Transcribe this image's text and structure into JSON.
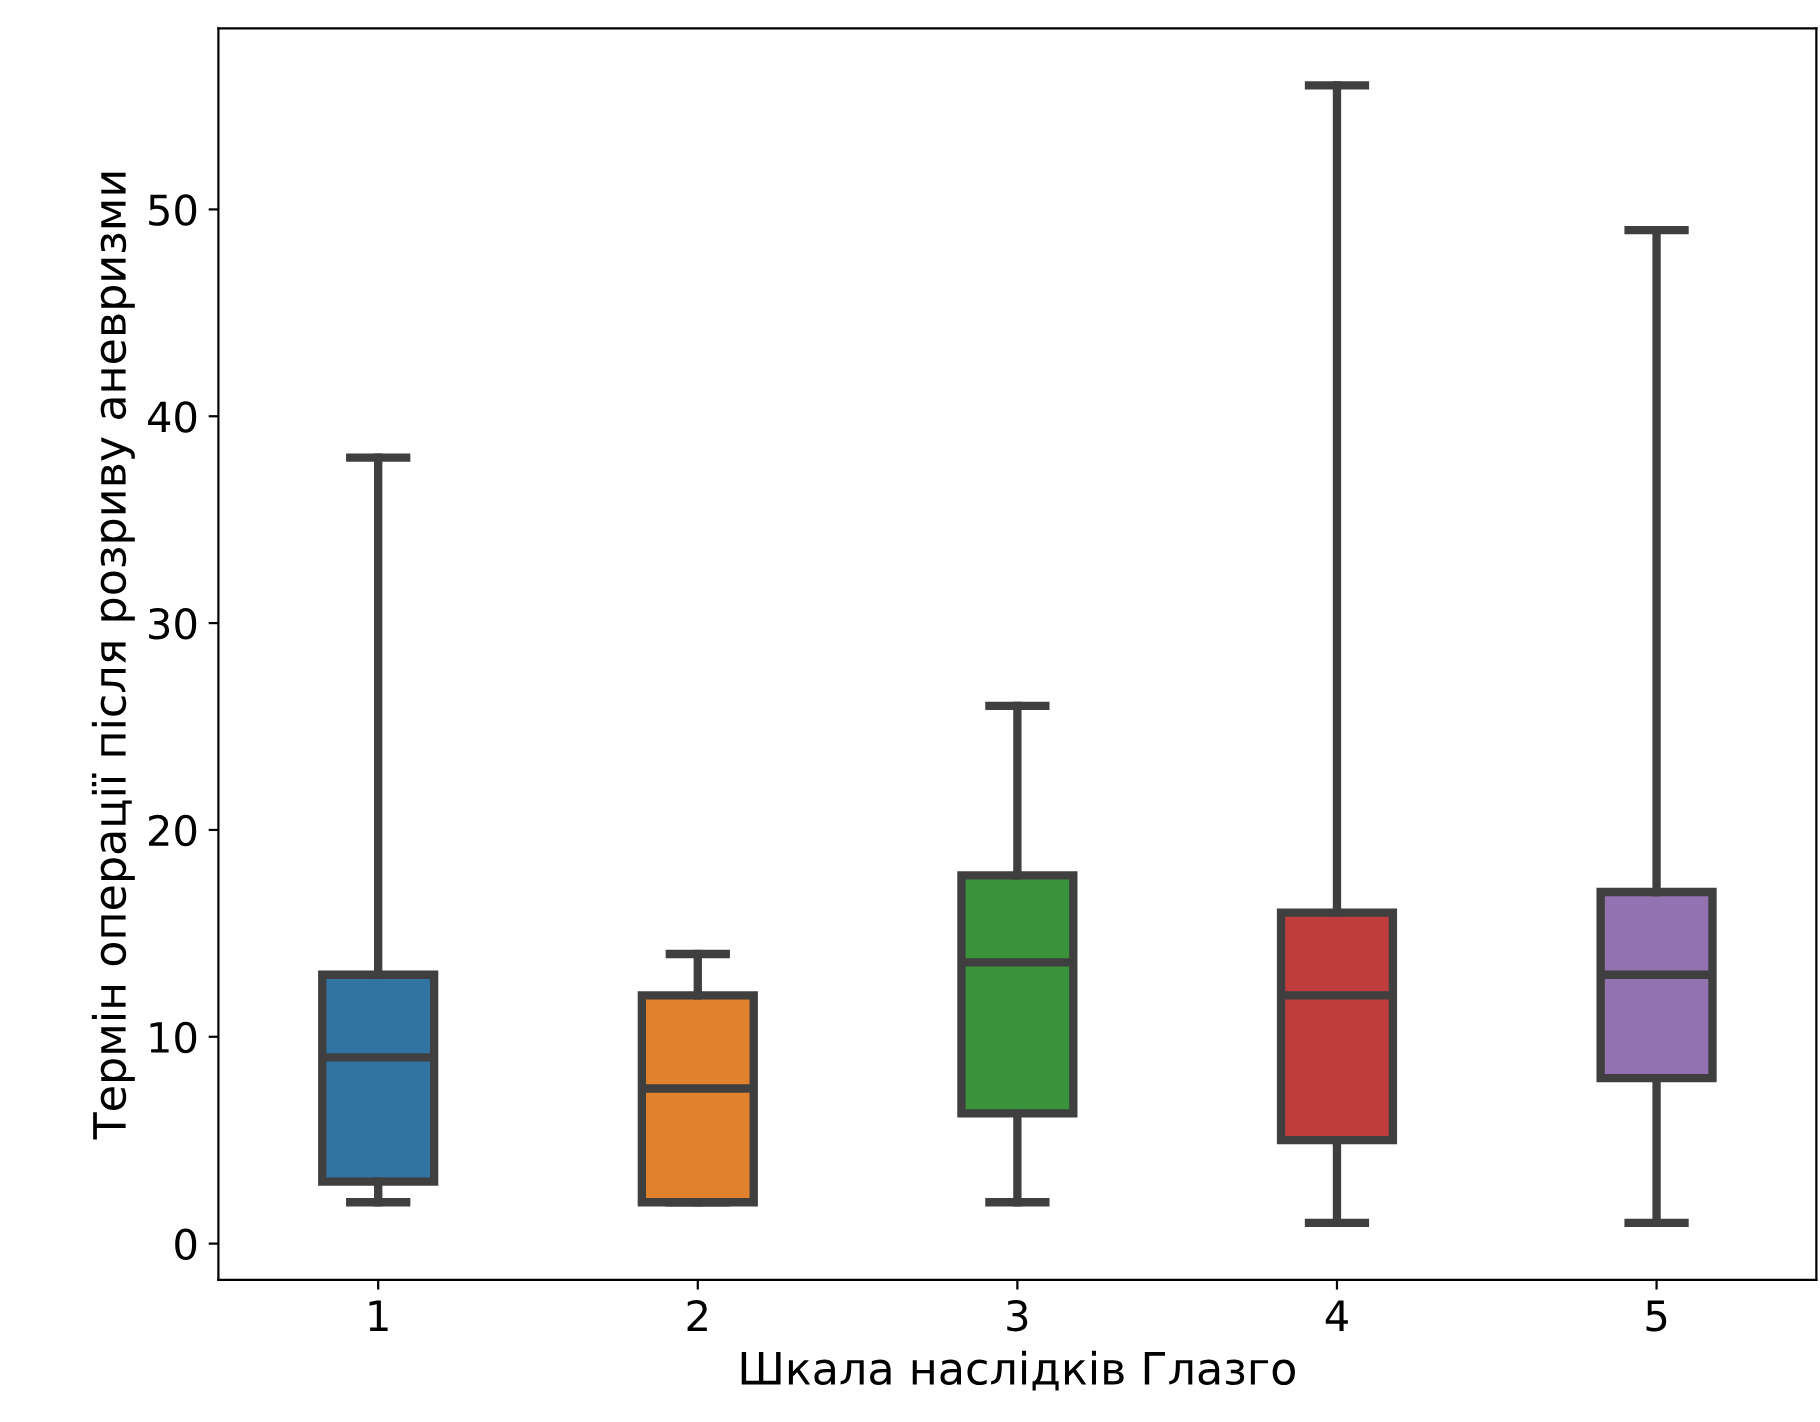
{
  "chart_data": {
    "type": "box",
    "xlabel": "Шкала наслідків Глазго",
    "ylabel": "Термін операції після розриву аневризми",
    "categories": [
      "1",
      "2",
      "3",
      "4",
      "5"
    ],
    "colors": [
      "#3274a1",
      "#e1812c",
      "#3a923a",
      "#c03d3e",
      "#9372b2"
    ],
    "boxes": [
      {
        "low": 2,
        "q1": 3,
        "median": 9,
        "q3": 13,
        "high": 38
      },
      {
        "low": 2,
        "q1": 2,
        "median": 7.5,
        "q3": 12,
        "high": 14
      },
      {
        "low": 2,
        "q1": 6.3,
        "median": 13.6,
        "q3": 17.8,
        "high": 26
      },
      {
        "low": 1,
        "q1": 5,
        "median": 12,
        "q3": 16,
        "high": 56
      },
      {
        "low": 1,
        "q1": 8,
        "median": 13,
        "q3": 17,
        "high": 49
      }
    ],
    "ylim": [
      -1.75,
      58.75
    ],
    "yticks": [
      0,
      10,
      20,
      30,
      40,
      50
    ],
    "grid": false
  }
}
